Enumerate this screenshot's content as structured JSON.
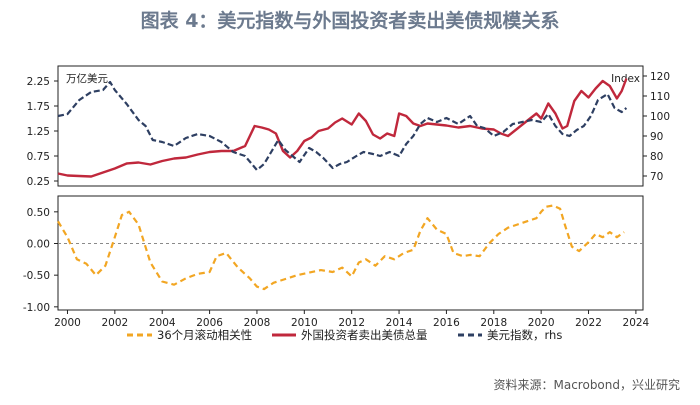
{
  "title": "图表 4：美元指数与外国投资者卖出美债规模关系",
  "source": "资料来源：Macrobond，兴业研究",
  "chart_data": [
    {
      "type": "line",
      "top_left_unit": "万亿美元",
      "top_right_unit": "Index",
      "x_ticks": [
        "2000",
        "2002",
        "2004",
        "2006",
        "2008",
        "2010",
        "2012",
        "2014",
        "2016",
        "2018",
        "2020",
        "2022",
        "2024"
      ],
      "xlim": [
        1999.6,
        2024.3
      ],
      "ylim": [
        0.15,
        2.55
      ],
      "y_ticks": [
        "0.25",
        "0.75",
        "1.25",
        "1.75",
        "2.25"
      ],
      "y2lim": [
        65,
        125
      ],
      "y2_ticks": [
        "70",
        "80",
        "90",
        "100",
        "110",
        "120"
      ],
      "legend": [
        "36个月滚动相关性",
        "外国投资者卖出美债总量",
        "美元指数，rhs"
      ],
      "colors": {
        "corr": "#f2a623",
        "foreign": "#c0283c",
        "dxy": "#2e3f62"
      },
      "series": [
        {
          "name": "外国投资者卖出美债总量",
          "axis": "left",
          "color": "#c0283c",
          "x": [
            1999.6,
            2000,
            2000.5,
            2001,
            2001.5,
            2002,
            2002.5,
            2003,
            2003.5,
            2004,
            2004.5,
            2005,
            2005.5,
            2006,
            2006.5,
            2007,
            2007.5,
            2007.9,
            2008.2,
            2008.5,
            2008.8,
            2009.1,
            2009.4,
            2009.7,
            2010,
            2010.3,
            2010.6,
            2011,
            2011.3,
            2011.6,
            2012,
            2012.3,
            2012.6,
            2012.9,
            2013.2,
            2013.5,
            2013.8,
            2014,
            2014.3,
            2014.6,
            2014.9,
            2015.2,
            2015.6,
            2016,
            2016.5,
            2017,
            2017.5,
            2018,
            2018.3,
            2018.6,
            2019,
            2019.4,
            2019.8,
            2020,
            2020.3,
            2020.6,
            2020.9,
            2021.1,
            2021.4,
            2021.7,
            2022,
            2022.3,
            2022.6,
            2022.9,
            2023.2,
            2023.4,
            2023.6
          ],
          "y": [
            0.4,
            0.36,
            0.35,
            0.34,
            0.42,
            0.5,
            0.6,
            0.62,
            0.58,
            0.65,
            0.7,
            0.72,
            0.78,
            0.83,
            0.85,
            0.85,
            0.95,
            1.35,
            1.32,
            1.28,
            1.2,
            0.85,
            0.72,
            0.85,
            1.05,
            1.12,
            1.25,
            1.3,
            1.42,
            1.5,
            1.38,
            1.6,
            1.45,
            1.18,
            1.1,
            1.2,
            1.15,
            1.6,
            1.55,
            1.4,
            1.35,
            1.4,
            1.38,
            1.36,
            1.32,
            1.35,
            1.3,
            1.28,
            1.2,
            1.15,
            1.3,
            1.45,
            1.6,
            1.5,
            1.8,
            1.6,
            1.3,
            1.35,
            1.85,
            2.05,
            1.92,
            2.1,
            2.25,
            2.15,
            1.9,
            2.05,
            2.3
          ]
        },
        {
          "name": "美元指数，rhs",
          "axis": "right",
          "color": "#2e3f62",
          "x": [
            1999.6,
            2000,
            2000.5,
            2001,
            2001.5,
            2001.8,
            2002,
            2002.5,
            2003,
            2003.3,
            2003.6,
            2004,
            2004.5,
            2005,
            2005.5,
            2006,
            2006.5,
            2007,
            2007.5,
            2008,
            2008.3,
            2008.6,
            2008.9,
            2009.2,
            2009.5,
            2009.8,
            2010.2,
            2010.5,
            2010.8,
            2011.2,
            2011.5,
            2011.8,
            2012.2,
            2012.5,
            2012.9,
            2013.2,
            2013.6,
            2014,
            2014.3,
            2014.6,
            2014.9,
            2015.2,
            2015.6,
            2016,
            2016.5,
            2017,
            2017.3,
            2017.6,
            2018,
            2018.4,
            2018.8,
            2019.2,
            2019.6,
            2020,
            2020.3,
            2020.6,
            2020.9,
            2021.2,
            2021.5,
            2021.8,
            2022.1,
            2022.4,
            2022.8,
            2023.1,
            2023.4,
            2023.6
          ],
          "y": [
            100,
            101,
            108,
            112,
            113,
            117,
            113,
            106,
            98,
            95,
            88,
            87,
            85,
            89,
            91,
            90,
            87,
            82,
            80,
            73,
            76,
            82,
            88,
            83,
            80,
            77,
            84,
            82,
            79,
            74,
            76,
            77,
            80,
            82,
            81,
            80,
            82,
            80,
            86,
            90,
            96,
            99,
            97,
            99,
            96,
            100,
            95,
            94,
            90,
            92,
            96,
            97,
            98,
            97,
            101,
            95,
            91,
            90,
            93,
            95,
            100,
            108,
            111,
            104,
            102,
            104
          ]
        },
        {
          "name": "36个月滚动相关性",
          "axis": "bottom",
          "color": "#f2a623",
          "x": [
            1999.6,
            2000,
            2000.4,
            2000.8,
            2001.2,
            2001.6,
            2002,
            2002.3,
            2002.6,
            2003,
            2003.5,
            2004,
            2004.5,
            2005,
            2005.5,
            2006,
            2006.3,
            2006.7,
            2007.2,
            2007.7,
            2008,
            2008.3,
            2008.7,
            2009.2,
            2009.7,
            2010.2,
            2010.7,
            2011.2,
            2011.6,
            2012,
            2012.3,
            2012.6,
            2013,
            2013.4,
            2013.8,
            2014.2,
            2014.6,
            2014.9,
            2015.2,
            2015.6,
            2016,
            2016.3,
            2016.7,
            2017,
            2017.4,
            2017.8,
            2018.2,
            2018.6,
            2019,
            2019.4,
            2019.8,
            2020,
            2020.2,
            2020.5,
            2020.8,
            2021,
            2021.3,
            2021.6,
            2022,
            2022.3,
            2022.6,
            2022.9,
            2023.2,
            2023.5
          ],
          "y": [
            0.35,
            0.1,
            -0.25,
            -0.32,
            -0.5,
            -0.35,
            0.1,
            0.45,
            0.5,
            0.3,
            -0.3,
            -0.6,
            -0.65,
            -0.55,
            -0.48,
            -0.45,
            -0.2,
            -0.15,
            -0.38,
            -0.55,
            -0.68,
            -0.72,
            -0.62,
            -0.56,
            -0.5,
            -0.46,
            -0.42,
            -0.45,
            -0.38,
            -0.52,
            -0.3,
            -0.25,
            -0.35,
            -0.2,
            -0.25,
            -0.15,
            -0.1,
            0.2,
            0.4,
            0.22,
            0.15,
            -0.15,
            -0.2,
            -0.18,
            -0.2,
            0.0,
            0.15,
            0.25,
            0.3,
            0.35,
            0.4,
            0.5,
            0.58,
            0.6,
            0.55,
            0.3,
            -0.05,
            -0.12,
            0.02,
            0.15,
            0.1,
            0.18,
            0.1,
            0.18
          ]
        }
      ],
      "bottom_ylim": [
        -1.05,
        0.75
      ],
      "bottom_y_ticks": [
        "0.50",
        "0.00",
        "-0.50",
        "-1.00"
      ]
    }
  ]
}
